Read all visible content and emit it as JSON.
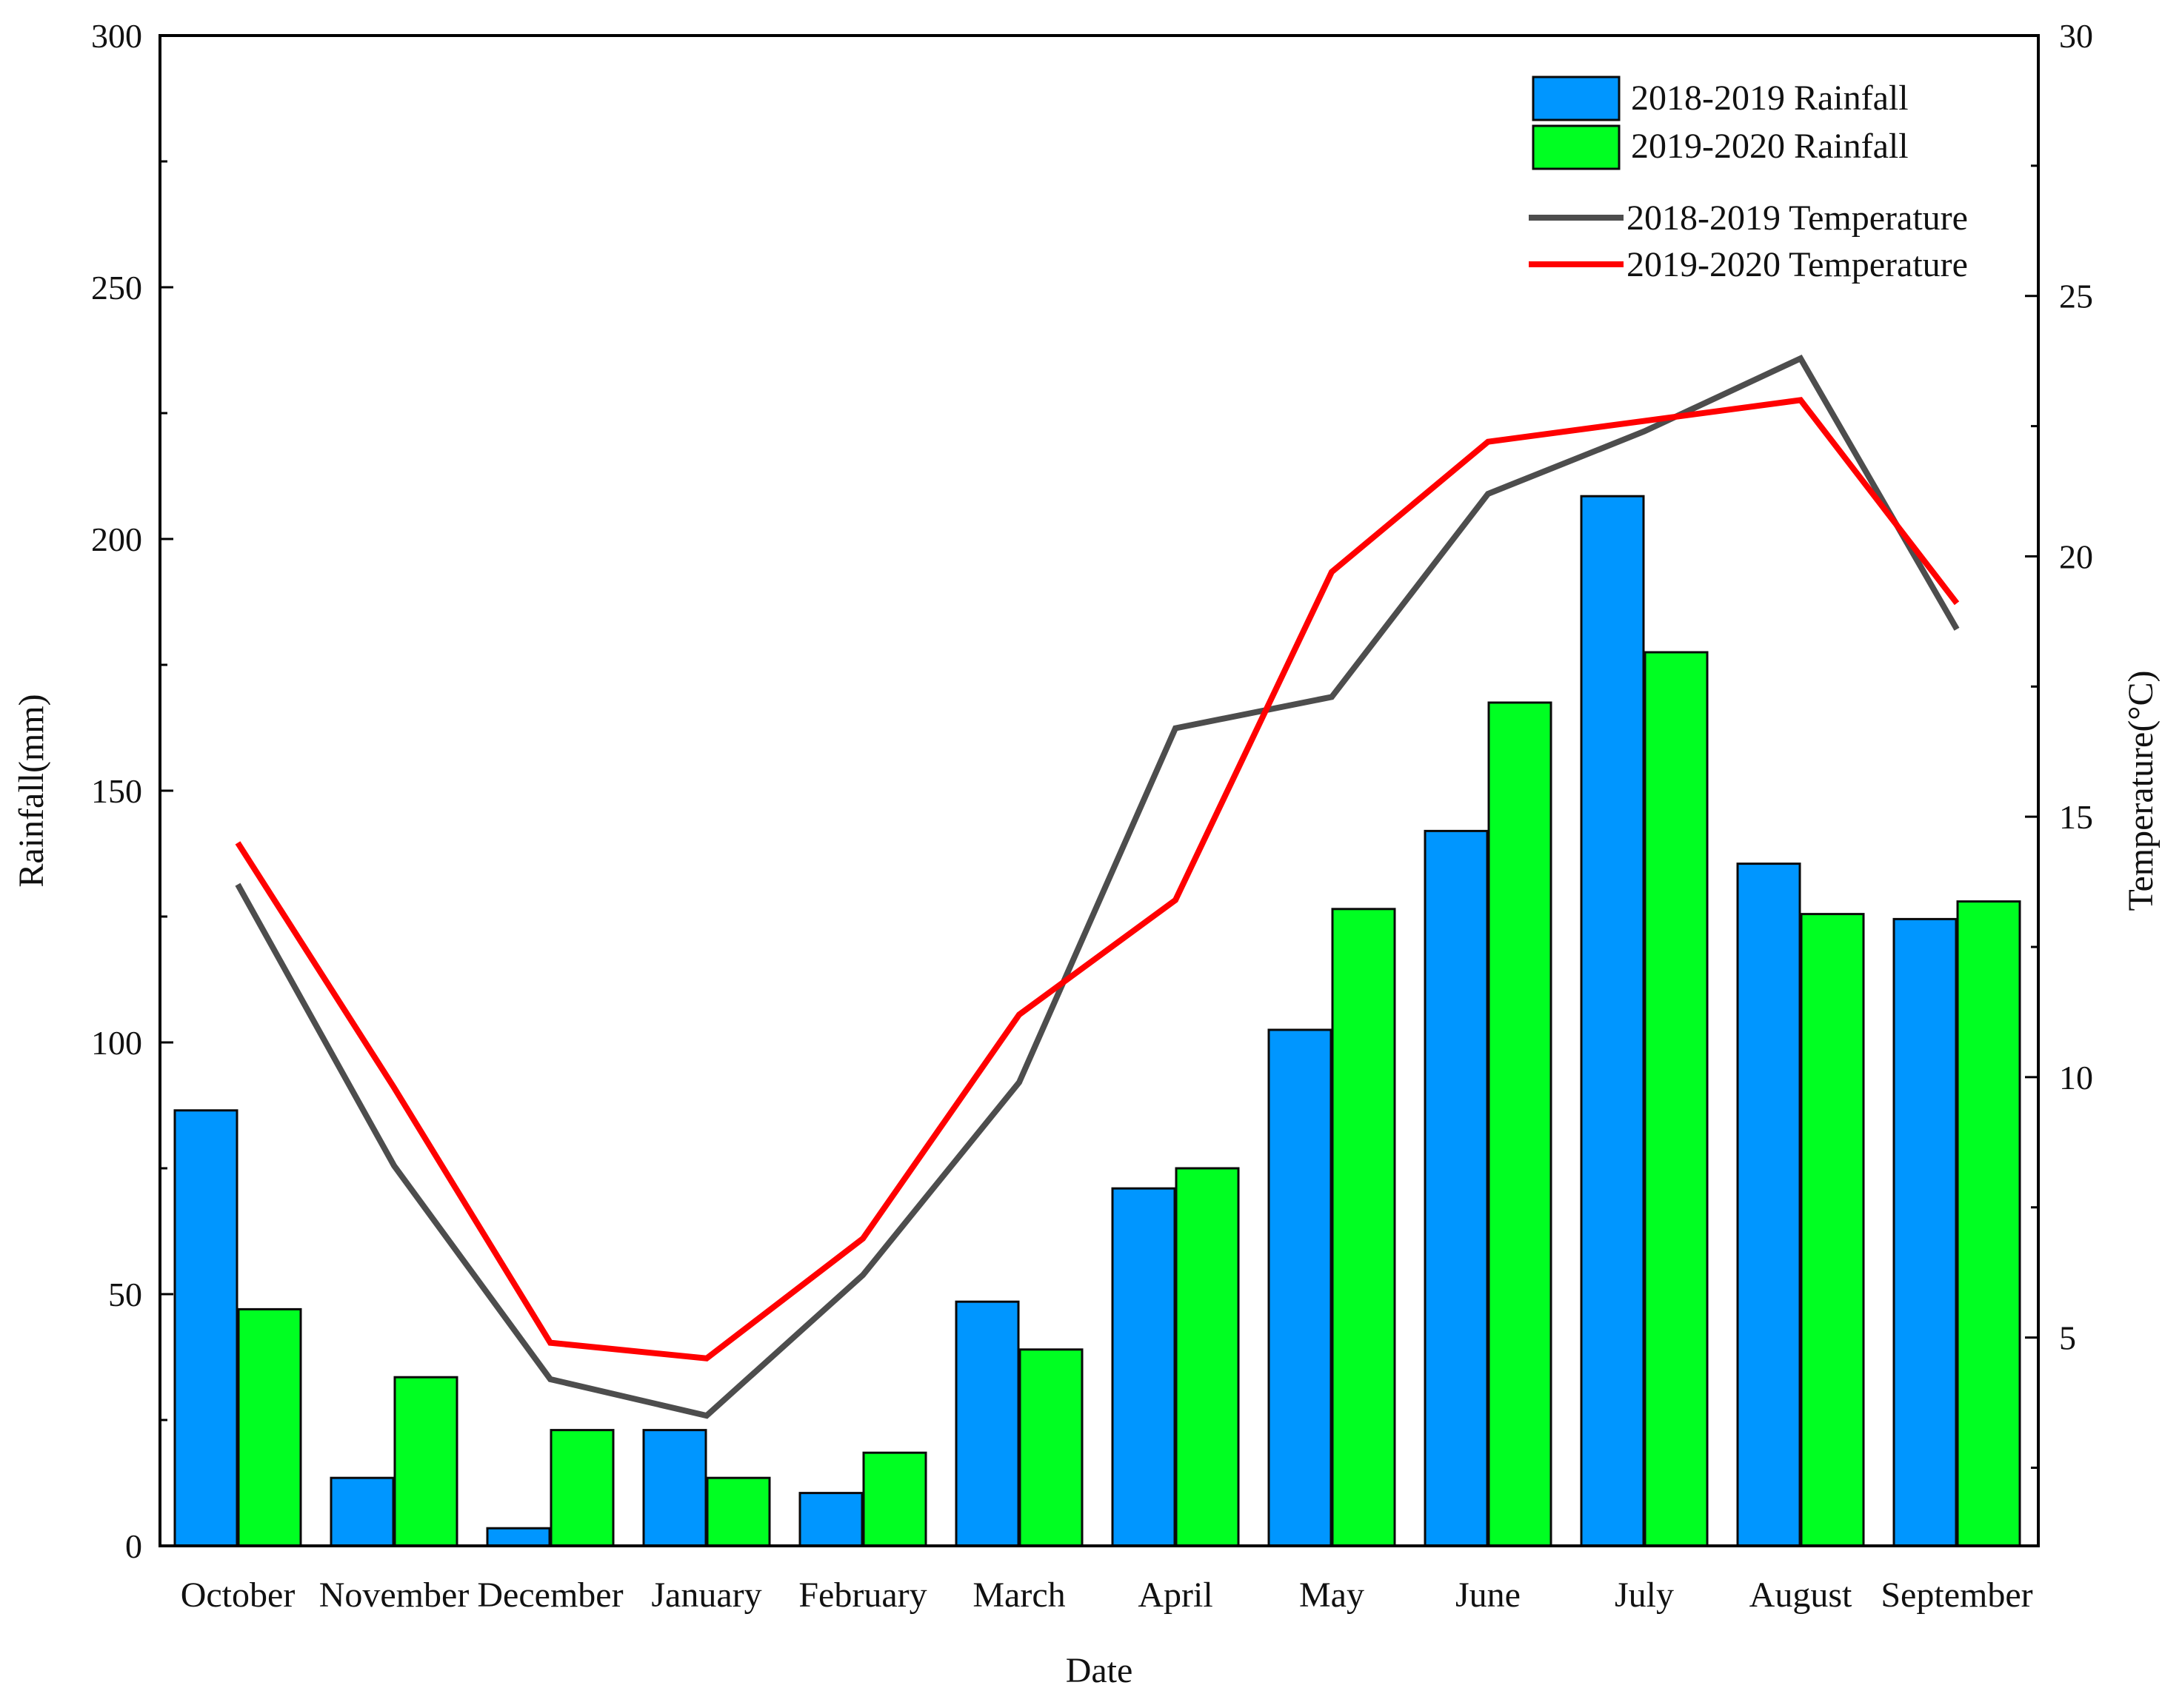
{
  "colors": {
    "rain_2018": "#0096FF",
    "rain_2019": "#00FF22",
    "temp_2018": "#4D4D4D",
    "temp_2019": "#FF0000",
    "axis": "#000000",
    "bar_edge": "#0A0A0A"
  },
  "chart_data": {
    "type": "bar",
    "title": "",
    "xlabel": "Date",
    "ylabel": "Rainfall(mm)",
    "y2label": "Temperature(°C)",
    "ylim": [
      0,
      300
    ],
    "y2lim": [
      1,
      30
    ],
    "yticks": [
      "0",
      "50",
      "100",
      "150",
      "200",
      "250",
      "300"
    ],
    "y2ticks": [
      "5",
      "10",
      "15",
      "20",
      "25",
      "30"
    ],
    "categories": [
      "October",
      "November",
      "December",
      "January",
      "February",
      "March",
      "April",
      "May",
      "June",
      "July",
      "August",
      "September"
    ],
    "bar_series": [
      {
        "name": "2018-2019 Rainfall",
        "values": [
          86.5,
          13.5,
          3.5,
          23,
          10.5,
          48.5,
          71,
          102.5,
          142,
          208.5,
          135.5,
          124.5
        ]
      },
      {
        "name": "2019-2020 Rainfall",
        "values": [
          47,
          33.5,
          23,
          13.5,
          18.5,
          39,
          75,
          126.5,
          167.5,
          177.5,
          125.5,
          128
        ]
      }
    ],
    "line_series": [
      {
        "name": "2018-2019 Temperature",
        "axis": "right",
        "values": [
          13.7,
          8.3,
          4.2,
          3.5,
          6.2,
          9.9,
          16.7,
          17.3,
          21.2,
          22.4,
          23.8,
          18.6
        ]
      },
      {
        "name": "2019-2020 Temperature",
        "axis": "right",
        "values": [
          14.5,
          9.8,
          4.9,
          4.6,
          6.9,
          11.2,
          13.4,
          19.7,
          22.2,
          22.6,
          23.0,
          19.1
        ]
      }
    ],
    "legend": {
      "position": "top-right",
      "entries": [
        "2018-2019 Rainfall",
        "2019-2020 Rainfall",
        "2018-2019 Temperature",
        "2019-2020 Temperature"
      ]
    },
    "grid": false
  }
}
